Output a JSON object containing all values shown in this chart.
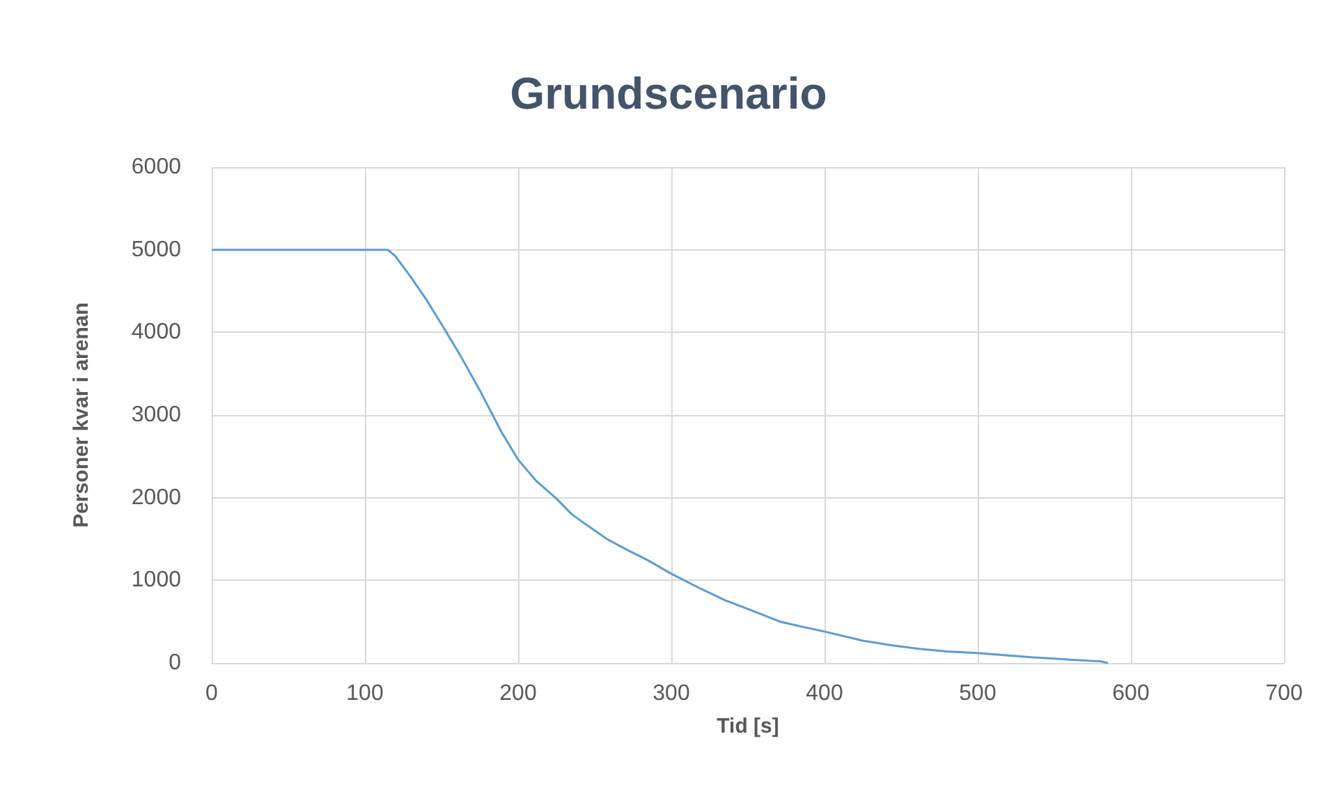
{
  "chart_data": {
    "type": "line",
    "title": "Grundscenario",
    "xlabel": "Tid [s]",
    "ylabel": "Personer kvar i arenan",
    "x": [
      0,
      50,
      100,
      115,
      120,
      130,
      140,
      150,
      162,
      175,
      189,
      200,
      212,
      225,
      235,
      244,
      258,
      271,
      285,
      300,
      318,
      335,
      352,
      371,
      385,
      400,
      425,
      445,
      462,
      480,
      500,
      520,
      535,
      560,
      580,
      585
    ],
    "series": [
      {
        "color": "#5b9bd5",
        "values": [
          5000,
          5000,
          5000,
          5000,
          4920,
          4670,
          4400,
          4100,
          3730,
          3300,
          2800,
          2460,
          2200,
          1990,
          1800,
          1680,
          1500,
          1370,
          1240,
          1080,
          910,
          760,
          640,
          500,
          440,
          380,
          270,
          210,
          170,
          140,
          120,
          90,
          70,
          40,
          20,
          0
        ]
      }
    ],
    "xlim": [
      0,
      700
    ],
    "xticks": [
      0,
      100,
      200,
      300,
      400,
      500,
      600,
      700
    ],
    "ylim": [
      0,
      6000
    ],
    "yticks": [
      0,
      1000,
      2000,
      3000,
      4000,
      5000,
      6000
    ],
    "grid": true,
    "marker": "none",
    "line_style": "solid"
  }
}
